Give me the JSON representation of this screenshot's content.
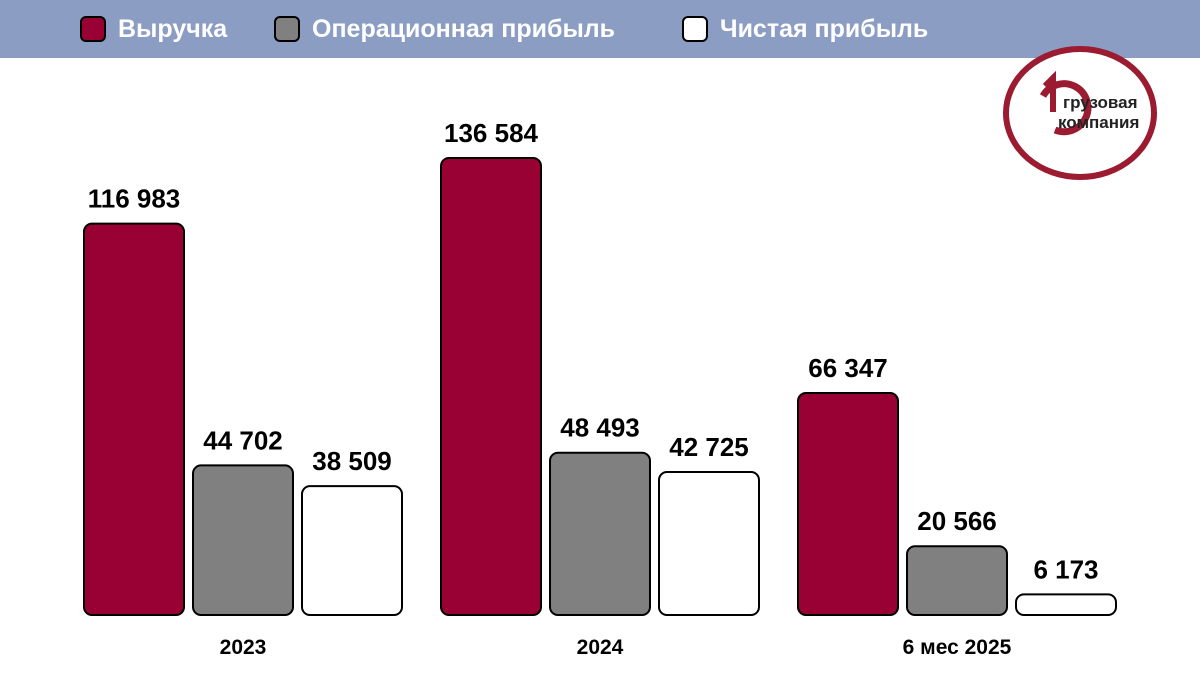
{
  "colors": {
    "revenue": "#990033",
    "operating": "#808080",
    "net": "#ffffff",
    "legend_bg": "#8b9dc3",
    "logo_ring": "#9b1b30"
  },
  "logo": {
    "line1": "грузовая",
    "line2": "компания"
  },
  "chart_data": {
    "type": "bar",
    "title": "",
    "xlabel": "",
    "ylabel": "",
    "categories": [
      "2023",
      "2024",
      "6 мес 2025"
    ],
    "series": [
      {
        "name": "Выручка",
        "color": "#990033",
        "values": [
          116983,
          136584,
          66347
        ],
        "labels": [
          "116 983",
          "136 584",
          "66 347"
        ]
      },
      {
        "name": "Операционная прибыль",
        "color": "#808080",
        "values": [
          44702,
          48493,
          20566
        ],
        "labels": [
          "44 702",
          "48 493",
          "20 566"
        ]
      },
      {
        "name": "Чистая прибыль",
        "color": "#ffffff",
        "values": [
          38509,
          42725,
          6173
        ],
        "labels": [
          "38 509",
          "42 725",
          "6 173"
        ]
      }
    ],
    "ylim": [
      0,
      160000
    ],
    "grid": false,
    "legend": "top"
  }
}
